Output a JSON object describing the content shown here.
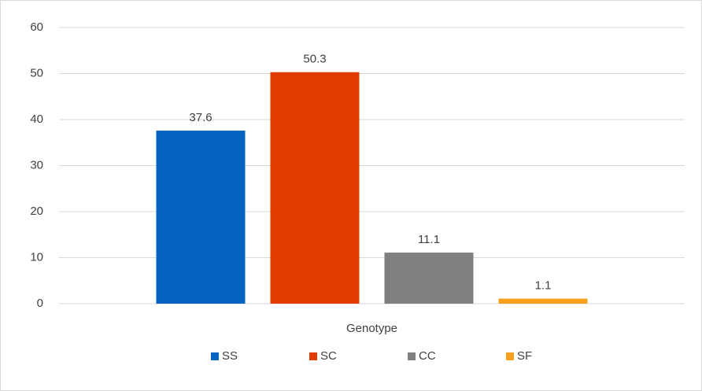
{
  "chart_data": {
    "type": "bar",
    "categories": [
      "Genotype"
    ],
    "series": [
      {
        "name": "SS",
        "color": "#0563c1",
        "values": [
          37.6
        ]
      },
      {
        "name": "SC",
        "color": "#e03c00",
        "values": [
          50.3
        ]
      },
      {
        "name": "CC",
        "color": "#7f7f7f",
        "values": [
          11.1
        ]
      },
      {
        "name": "SF",
        "color": "#f9a11b",
        "values": [
          1.1
        ]
      }
    ],
    "ylim": [
      0,
      60
    ],
    "yticks": [
      0,
      10,
      20,
      30,
      40,
      50,
      60
    ],
    "grid": true,
    "legend": "bottom"
  }
}
